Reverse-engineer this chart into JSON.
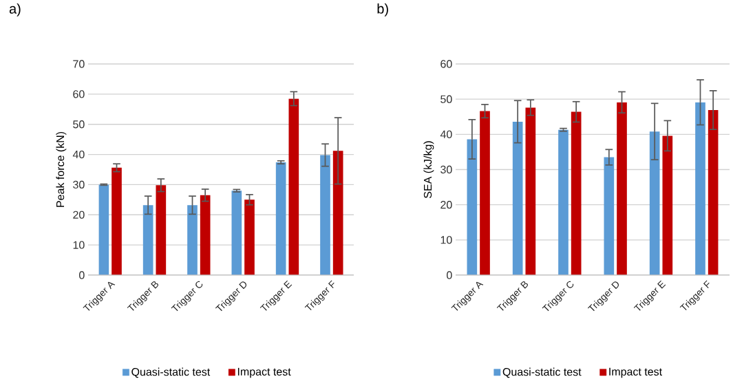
{
  "chart_data": [
    {
      "type": "bar",
      "title": "a)",
      "ylabel": "Peak force (kN)",
      "categories": [
        "Trigger A",
        "Trigger B",
        "Trigger C",
        "Trigger D",
        "Trigger E",
        "Trigger F"
      ],
      "series": [
        {
          "name": "Quasi-static test",
          "color": "#5b9bd5",
          "values": [
            30.0,
            23.2,
            23.2,
            28.0,
            37.4,
            39.8
          ],
          "errors": [
            0.2,
            3.0,
            3.0,
            0.4,
            0.5,
            3.7
          ]
        },
        {
          "name": "Impact test",
          "color": "#c00000",
          "values": [
            35.6,
            29.8,
            26.5,
            25.0,
            58.5,
            41.2
          ],
          "errors": [
            1.3,
            2.1,
            2.0,
            1.7,
            2.3,
            11.0
          ]
        }
      ],
      "ylim": [
        0,
        70
      ],
      "yticks": [
        0,
        10,
        20,
        30,
        40,
        50,
        60,
        70
      ],
      "grid": "y",
      "legend": "bottom"
    },
    {
      "type": "bar",
      "title": "b)",
      "ylabel": "SEA (kJ/kg)",
      "categories": [
        "Trigger A",
        "Trigger B",
        "Trigger C",
        "Trigger D",
        "Trigger E",
        "Trigger F"
      ],
      "series": [
        {
          "name": "Quasi-static test",
          "color": "#5b9bd5",
          "values": [
            38.6,
            43.6,
            41.3,
            33.5,
            40.8,
            49.1
          ],
          "errors": [
            5.6,
            6.0,
            0.4,
            2.2,
            8.0,
            6.4
          ]
        },
        {
          "name": "Impact test",
          "color": "#c00000",
          "values": [
            46.6,
            47.6,
            46.4,
            49.1,
            39.6,
            46.9
          ],
          "errors": [
            1.9,
            2.2,
            2.9,
            3.0,
            4.3,
            5.5
          ]
        }
      ],
      "ylim": [
        0,
        60
      ],
      "yticks": [
        0,
        10,
        20,
        30,
        40,
        50,
        60
      ],
      "grid": "y",
      "legend": "bottom"
    }
  ]
}
